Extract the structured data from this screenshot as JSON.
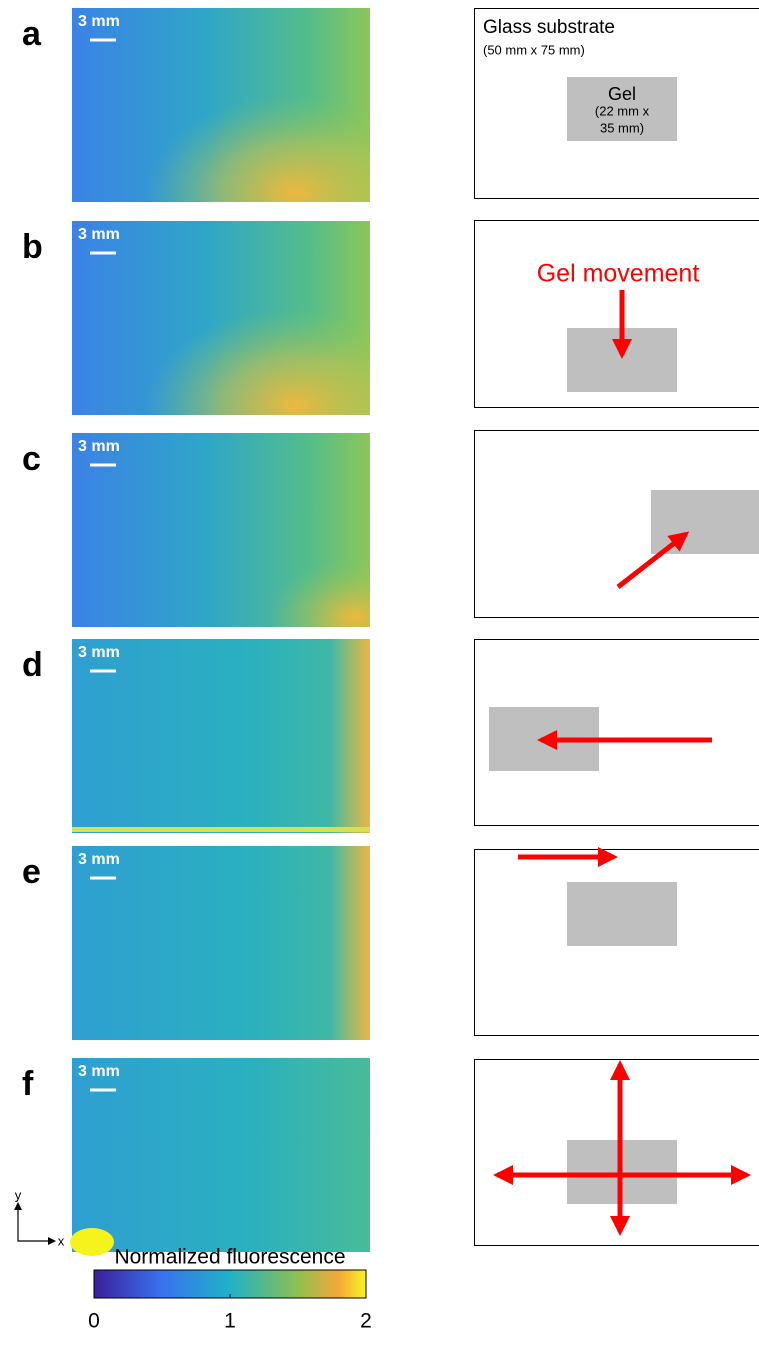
{
  "panels": [
    {
      "label": "a",
      "scale_bar": "3 mm"
    },
    {
      "label": "b",
      "scale_bar": "3 mm"
    },
    {
      "label": "c",
      "scale_bar": "3 mm"
    },
    {
      "label": "d",
      "scale_bar": "3 mm"
    },
    {
      "label": "e",
      "scale_bar": "3 mm"
    },
    {
      "label": "f",
      "scale_bar": "3 mm"
    }
  ],
  "schematic": {
    "substrate_label": "Glass substrate",
    "substrate_size": "(50 mm x 75 mm)",
    "gel_label": "Gel",
    "gel_size_line1": "(22 mm x",
    "gel_size_line2": "35 mm)",
    "movement_label": "Gel movement"
  },
  "axes": {
    "y": "y",
    "x": "x"
  },
  "colorbar": {
    "label": "Normalized fluorescence",
    "lim": [
      0,
      2
    ],
    "ticks": [
      0,
      1,
      2
    ]
  }
}
